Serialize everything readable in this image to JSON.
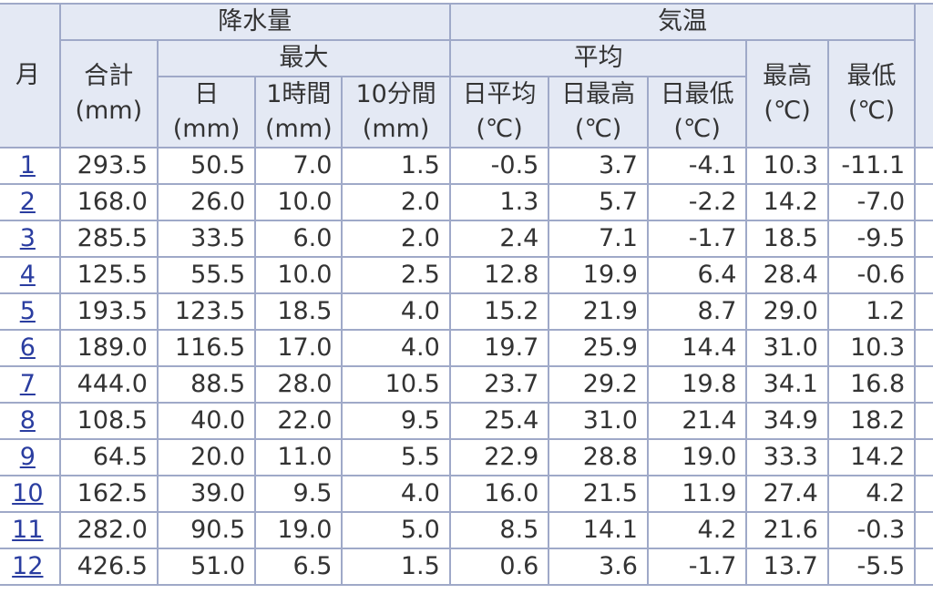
{
  "header": {
    "month": "月",
    "precip": "降水量",
    "temp": "気温",
    "total": "合計",
    "max": "最大",
    "avg": "平均",
    "highest": "最高",
    "lowest": "最低",
    "day": "日",
    "hour1": "1時間",
    "min10": "10分間",
    "day_avg": "日平均",
    "day_max": "日最高",
    "day_min": "日最低",
    "unit_mm": "(mm)",
    "unit_c": "(℃)"
  },
  "rows": [
    [
      "1",
      "293.5",
      "50.5",
      "7.0",
      "1.5",
      "-0.5",
      "3.7",
      "-4.1",
      "10.3",
      "-11.1"
    ],
    [
      "2",
      "168.0",
      "26.0",
      "10.0",
      "2.0",
      "1.3",
      "5.7",
      "-2.2",
      "14.2",
      "-7.0"
    ],
    [
      "3",
      "285.5",
      "33.5",
      "6.0",
      "2.0",
      "2.4",
      "7.1",
      "-1.7",
      "18.5",
      "-9.5"
    ],
    [
      "4",
      "125.5",
      "55.5",
      "10.0",
      "2.5",
      "12.8",
      "19.9",
      "6.4",
      "28.4",
      "-0.6"
    ],
    [
      "5",
      "193.5",
      "123.5",
      "18.5",
      "4.0",
      "15.2",
      "21.9",
      "8.7",
      "29.0",
      "1.2"
    ],
    [
      "6",
      "189.0",
      "116.5",
      "17.0",
      "4.0",
      "19.7",
      "25.9",
      "14.4",
      "31.0",
      "10.3"
    ],
    [
      "7",
      "444.0",
      "88.5",
      "28.0",
      "10.5",
      "23.7",
      "29.2",
      "19.8",
      "34.1",
      "16.8"
    ],
    [
      "8",
      "108.5",
      "40.0",
      "22.0",
      "9.5",
      "25.4",
      "31.0",
      "21.4",
      "34.9",
      "18.2"
    ],
    [
      "9",
      "64.5",
      "20.0",
      "11.0",
      "5.5",
      "22.9",
      "28.8",
      "19.0",
      "33.3",
      "14.2"
    ],
    [
      "10",
      "162.5",
      "39.0",
      "9.5",
      "4.0",
      "16.0",
      "21.5",
      "11.9",
      "27.4",
      "4.2"
    ],
    [
      "11",
      "282.0",
      "90.5",
      "19.0",
      "5.0",
      "8.5",
      "14.1",
      "4.2",
      "21.6",
      "-0.3"
    ],
    [
      "12",
      "426.5",
      "51.0",
      "6.5",
      "1.5",
      "0.6",
      "3.6",
      "-1.7",
      "13.7",
      "-5.5"
    ]
  ]
}
